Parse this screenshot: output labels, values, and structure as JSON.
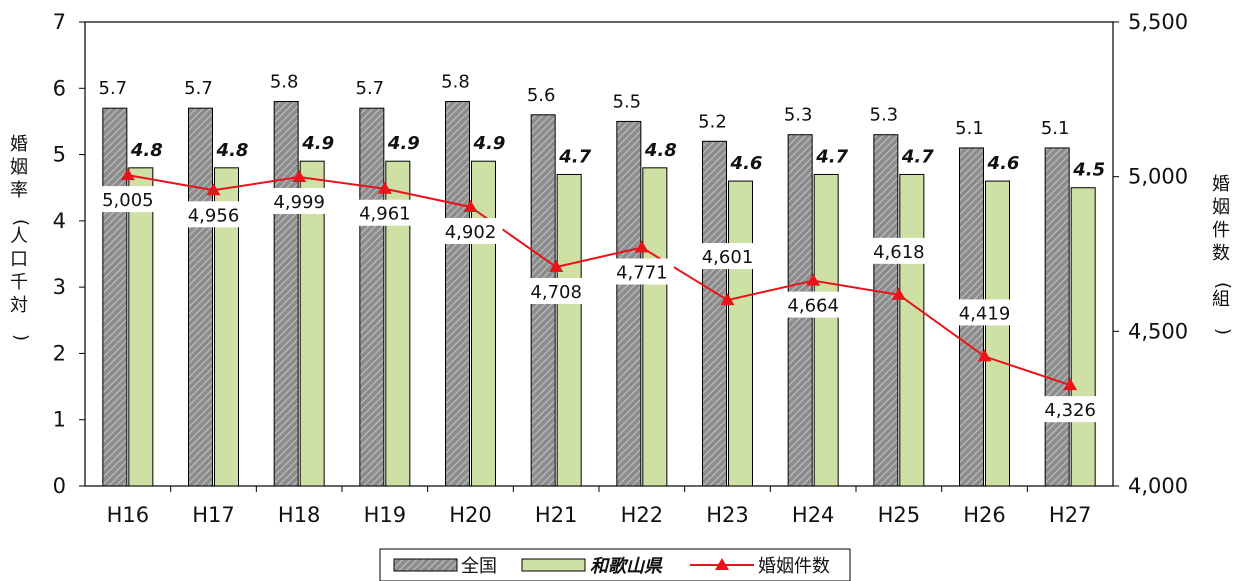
{
  "chart_data": {
    "type": "bar",
    "categories": [
      "H16",
      "H17",
      "H18",
      "H19",
      "H20",
      "H21",
      "H22",
      "H23",
      "H24",
      "H25",
      "H26",
      "H27"
    ],
    "series": [
      {
        "name": "全国",
        "type": "bar",
        "axis": "left",
        "values": [
          5.7,
          5.7,
          5.8,
          5.7,
          5.8,
          5.6,
          5.5,
          5.2,
          5.3,
          5.3,
          5.1,
          5.1
        ],
        "labels": [
          "5.7",
          "5.7",
          "5.8",
          "5.7",
          "5.8",
          "5.6",
          "5.5",
          "5.2",
          "5.3",
          "5.3",
          "5.1",
          "5.1"
        ],
        "color": "#9a9a9a"
      },
      {
        "name": "和歌山県",
        "type": "bar",
        "axis": "left",
        "values": [
          4.8,
          4.8,
          4.9,
          4.9,
          4.9,
          4.7,
          4.8,
          4.6,
          4.7,
          4.7,
          4.6,
          4.5
        ],
        "labels": [
          "4.8",
          "4.8",
          "4.9",
          "4.9",
          "4.9",
          "4.7",
          "4.8",
          "4.6",
          "4.7",
          "4.7",
          "4.6",
          "4.5"
        ],
        "color": "#cfe0a4"
      },
      {
        "name": "婚姻件数",
        "type": "line",
        "axis": "right",
        "values": [
          5005,
          4956,
          4999,
          4961,
          4902,
          4708,
          4771,
          4601,
          4664,
          4618,
          4419,
          4326
        ],
        "labels": [
          "5,005",
          "4,956",
          "4,999",
          "4,961",
          "4,902",
          "4,708",
          "4,771",
          "4,601",
          "4,664",
          "4,618",
          "4,419",
          "4,326"
        ],
        "color": "#e8141a"
      }
    ],
    "y_left": {
      "title": "婚姻率(人口千対)",
      "range": [
        0,
        7
      ],
      "ticks": [
        "0",
        "1",
        "2",
        "3",
        "4",
        "5",
        "6",
        "7"
      ]
    },
    "y_right": {
      "title": "婚姻件数(組)",
      "range": [
        4000,
        5500
      ],
      "ticks": [
        "4,000",
        "4,500",
        "5,000",
        "5,500"
      ]
    },
    "legend": {
      "position": "bottom",
      "items": [
        "全国",
        "和歌山県",
        "婚姻件数"
      ]
    },
    "grid": false
  }
}
